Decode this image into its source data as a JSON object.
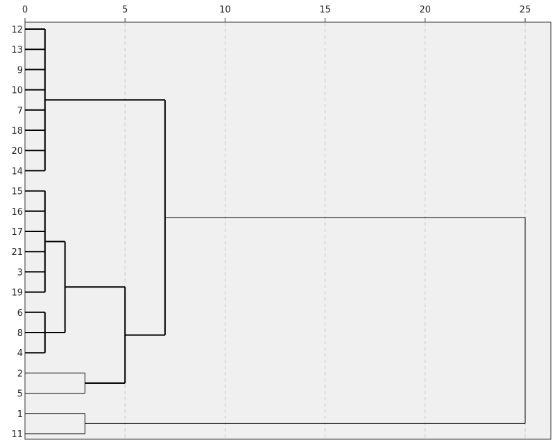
{
  "chart_data": {
    "type": "dendrogram",
    "orientation": "horizontal",
    "xlim": [
      0,
      25
    ],
    "x_ticks": [
      "0",
      "5",
      "10",
      "15",
      "20",
      "25"
    ],
    "grid": true,
    "leaves": [
      "12",
      "13",
      "9",
      "10",
      "7",
      "18",
      "20",
      "14",
      "15",
      "16",
      "17",
      "21",
      "3",
      "19",
      "6",
      "8",
      "4",
      "2",
      "5",
      "1",
      "11"
    ],
    "links": [
      {
        "x": 1,
        "children": [
          "12",
          "13",
          "9",
          "10",
          "7",
          "18",
          "20",
          "14"
        ],
        "bold": true
      },
      {
        "x": 1,
        "children": [
          "15",
          "16",
          "17",
          "21",
          "3",
          "19"
        ],
        "bold": true
      },
      {
        "x": 1,
        "children": [
          "6",
          "8",
          "4"
        ],
        "bold": true
      },
      {
        "x": 2,
        "children": [
          {
            "ref": "15..19"
          },
          {
            "ref": "6..4"
          }
        ],
        "bold": true
      },
      {
        "x": 5,
        "children": [
          {
            "ref": "15..4"
          },
          "2..5"
        ],
        "bold": true
      },
      {
        "x": 3,
        "children": [
          "2",
          "5"
        ],
        "bold": false
      },
      {
        "x": 7,
        "children": [
          {
            "ref": "12..14"
          },
          {
            "ref": "15..5"
          }
        ],
        "bold": true
      },
      {
        "x": 3,
        "children": [
          "1",
          "11"
        ],
        "bold": false
      },
      {
        "x": 25,
        "children": [
          {
            "ref": "12..5"
          },
          {
            "ref": "1..11"
          }
        ],
        "bold": false
      }
    ]
  }
}
